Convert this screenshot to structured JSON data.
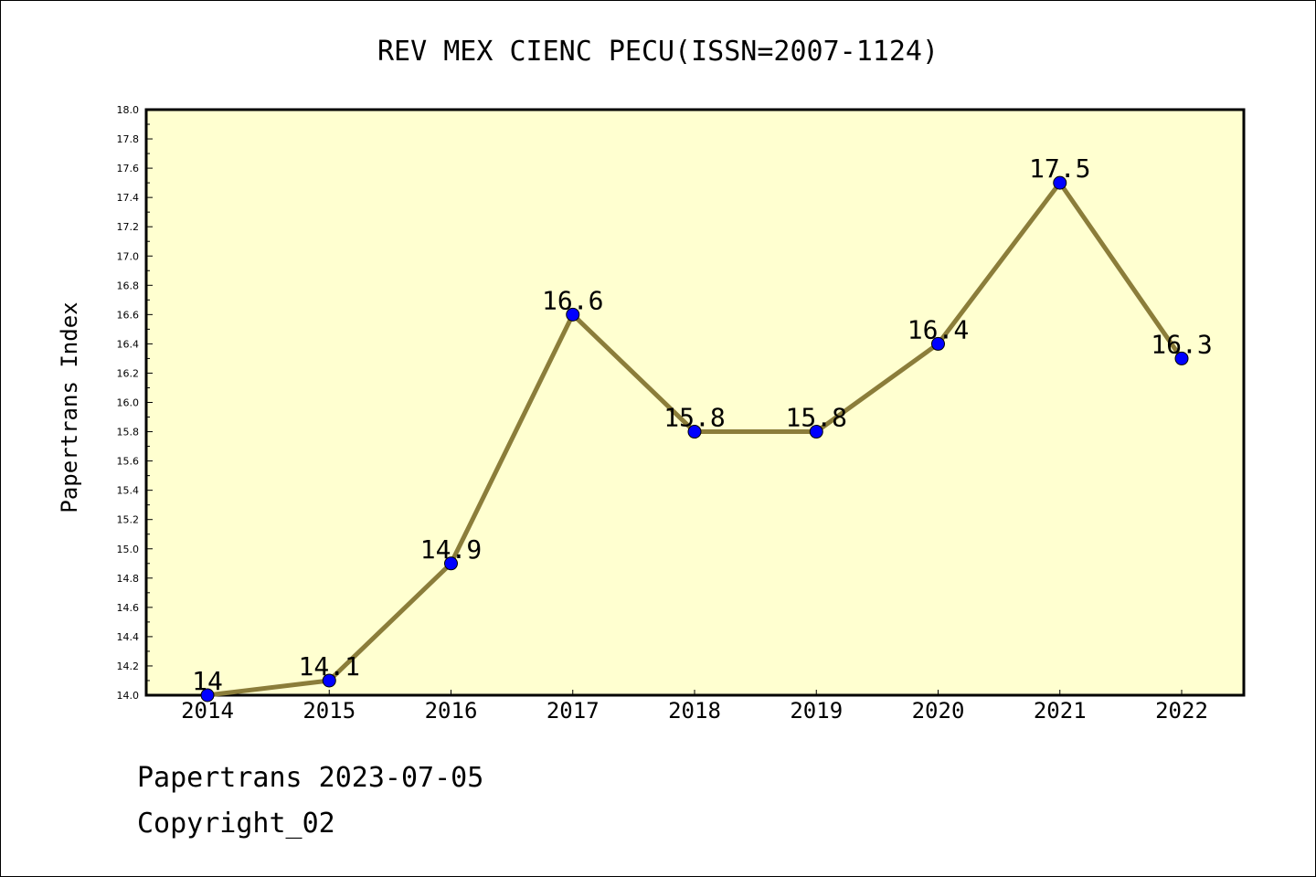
{
  "chart_data": {
    "type": "line",
    "title": "REV MEX CIENC PECU(ISSN=2007-1124)",
    "xlabel": "",
    "ylabel": "Papertrans Index",
    "categories": [
      "2014",
      "2015",
      "2016",
      "2017",
      "2018",
      "2019",
      "2020",
      "2021",
      "2022"
    ],
    "series": [
      {
        "values": [
          14,
          14.1,
          14.9,
          16.6,
          15.8,
          15.8,
          16.4,
          17.5,
          16.3
        ],
        "data_labels": [
          "14",
          "14.1",
          "14.9",
          "16.6",
          "15.8",
          "15.8",
          "16.4",
          "17.5",
          "16.3"
        ]
      }
    ],
    "ylim": [
      14.0,
      18.0
    ],
    "y_ticks": [
      "14.0",
      "14.2",
      "14.4",
      "14.6",
      "14.8",
      "15.0",
      "15.2",
      "15.4",
      "15.6",
      "15.8",
      "16.0",
      "16.2",
      "16.4",
      "16.6",
      "16.8",
      "17.0",
      "17.2",
      "17.4",
      "17.6",
      "17.8",
      "18.0"
    ],
    "grid": false,
    "legend": "none",
    "colors": {
      "plot_background": "#ffffd0",
      "line": "#8b7d3a",
      "marker": "#0000ff"
    }
  },
  "footer": {
    "date_line": "Papertrans 2023-07-05",
    "copyright": "Copyright_02"
  }
}
